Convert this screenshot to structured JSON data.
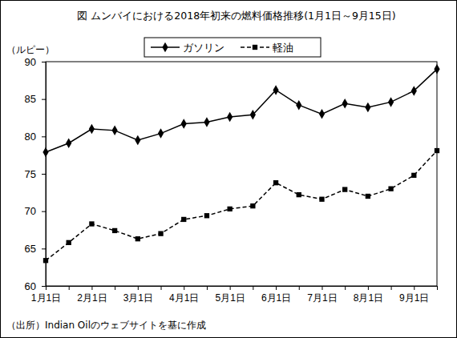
{
  "chart_data": {
    "type": "line",
    "title": "図 ムンバイにおける2018年初来の燃料価格推移(1月1日～9月15日)",
    "y_label": "（ルピー）",
    "source": "（出所）Indian Oilのウェブサイトを基に作成",
    "categories": [
      "1月1日",
      null,
      "2月1日",
      null,
      "3月1日",
      null,
      "4月1日",
      null,
      "5月1日",
      null,
      "6月1日",
      null,
      "7月1日",
      null,
      "8月1日",
      null,
      "9月1日",
      null
    ],
    "series": [
      {
        "name": "ガソリン",
        "color": "#000000",
        "marker": "diamond",
        "line_style": "solid",
        "values": [
          77.9,
          79.1,
          81.0,
          80.8,
          79.5,
          80.4,
          81.7,
          81.9,
          82.6,
          82.9,
          86.2,
          84.2,
          83.0,
          84.4,
          83.9,
          84.6,
          86.1,
          89.0
        ]
      },
      {
        "name": "軽油",
        "color": "#000000",
        "marker": "square",
        "line_style": "dashed",
        "values": [
          63.4,
          65.8,
          68.3,
          67.4,
          66.3,
          67.0,
          68.9,
          69.4,
          70.3,
          70.7,
          73.8,
          72.2,
          71.6,
          72.9,
          72.0,
          73.0,
          74.8,
          78.1
        ]
      }
    ],
    "ylim": [
      60,
      90
    ],
    "yticks": [
      60,
      65,
      70,
      75,
      80,
      85,
      90
    ],
    "grid": false,
    "legend": "top"
  }
}
